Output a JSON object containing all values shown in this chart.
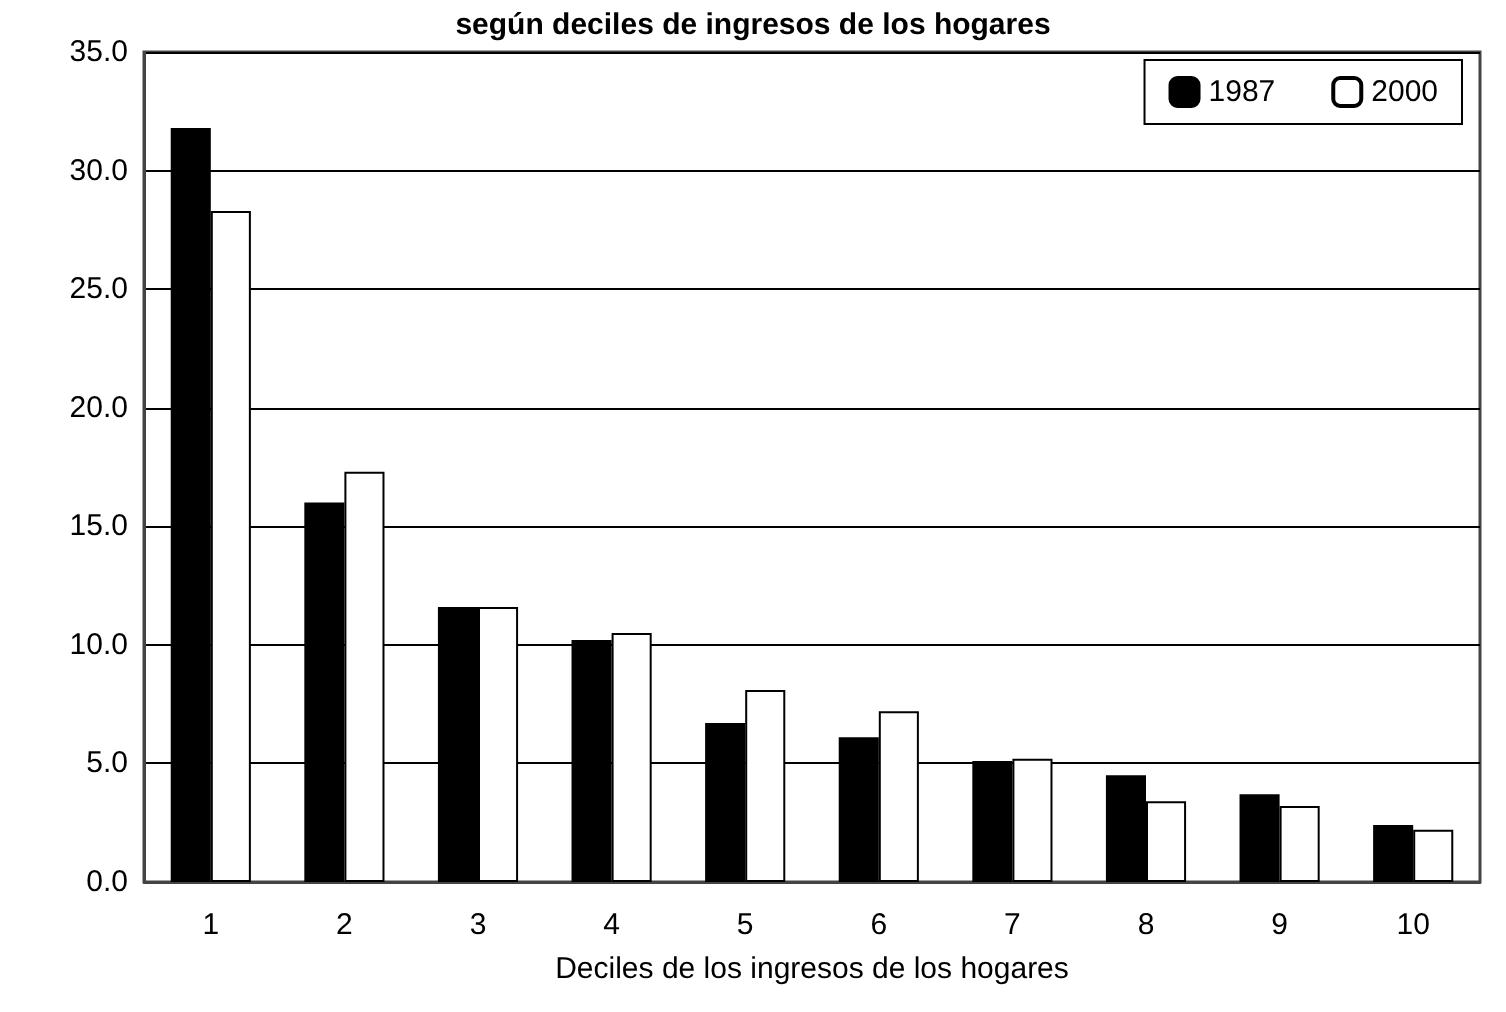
{
  "chart_data": {
    "type": "bar",
    "title": "según deciles de ingresos de los hogares",
    "xlabel": "Deciles de los ingresos de los hogares",
    "categories": [
      "1",
      "2",
      "3",
      "4",
      "5",
      "6",
      "7",
      "8",
      "9",
      "10"
    ],
    "series": [
      {
        "name": "1987",
        "color": "#000000",
        "values": [
          31.8,
          16.0,
          11.6,
          10.2,
          6.7,
          6.1,
          5.1,
          4.5,
          3.7,
          2.4
        ]
      },
      {
        "name": "2000",
        "color": "#ffffff",
        "values": [
          28.3,
          17.3,
          11.6,
          10.5,
          8.1,
          7.2,
          5.2,
          3.4,
          3.2,
          2.2
        ]
      }
    ],
    "ylim": [
      0,
      35
    ],
    "yticks": [
      {
        "value": 0,
        "label": "0.0"
      },
      {
        "value": 5,
        "label": "5.0"
      },
      {
        "value": 10,
        "label": "10.0"
      },
      {
        "value": 15,
        "label": "15.0"
      },
      {
        "value": 20,
        "label": "20.0"
      },
      {
        "value": 25,
        "label": "25.0"
      },
      {
        "value": 30,
        "label": "30.0"
      },
      {
        "value": 35,
        "label": "35.0"
      }
    ],
    "grid": "y",
    "legend": "top right"
  }
}
